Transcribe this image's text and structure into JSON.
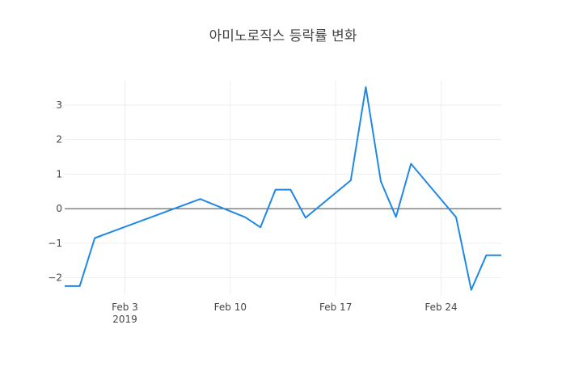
{
  "chart_data": {
    "type": "line",
    "title": "아미노로직스 등락률 변화",
    "xlabel": "",
    "ylabel": "",
    "x_axis_type": "date",
    "xlim": [
      "2019-01-30",
      "2019-02-28"
    ],
    "ylim": [
      -2.5,
      3.7
    ],
    "grid": true,
    "zero_line": true,
    "legend": "none",
    "line_color": "#1f88e5",
    "x_ticks": [
      {
        "date": "2019-02-03",
        "label": "Feb 3",
        "sublabel": "2019"
      },
      {
        "date": "2019-02-10",
        "label": "Feb 10",
        "sublabel": ""
      },
      {
        "date": "2019-02-17",
        "label": "Feb 17",
        "sublabel": ""
      },
      {
        "date": "2019-02-24",
        "label": "Feb 24",
        "sublabel": ""
      }
    ],
    "y_ticks": [
      {
        "value": 3,
        "label": "3"
      },
      {
        "value": 2,
        "label": "2"
      },
      {
        "value": 1,
        "label": "1"
      },
      {
        "value": 0,
        "label": "0"
      },
      {
        "value": -1,
        "label": "−1"
      },
      {
        "value": -2,
        "label": "−2"
      }
    ],
    "series": [
      {
        "x": [
          "2019-01-30",
          "2019-01-31",
          "2019-02-01",
          "2019-02-08",
          "2019-02-11",
          "2019-02-12",
          "2019-02-13",
          "2019-02-14",
          "2019-02-15",
          "2019-02-18",
          "2019-02-19",
          "2019-02-20",
          "2019-02-21",
          "2019-02-22",
          "2019-02-25",
          "2019-02-26",
          "2019-02-27",
          "2019-02-28"
        ],
        "y": [
          -2.24,
          -2.24,
          -0.85,
          0.28,
          -0.25,
          -0.54,
          0.55,
          0.55,
          -0.26,
          0.82,
          3.52,
          0.79,
          -0.24,
          1.3,
          -0.25,
          -2.35,
          -1.35,
          -1.35
        ]
      }
    ]
  }
}
